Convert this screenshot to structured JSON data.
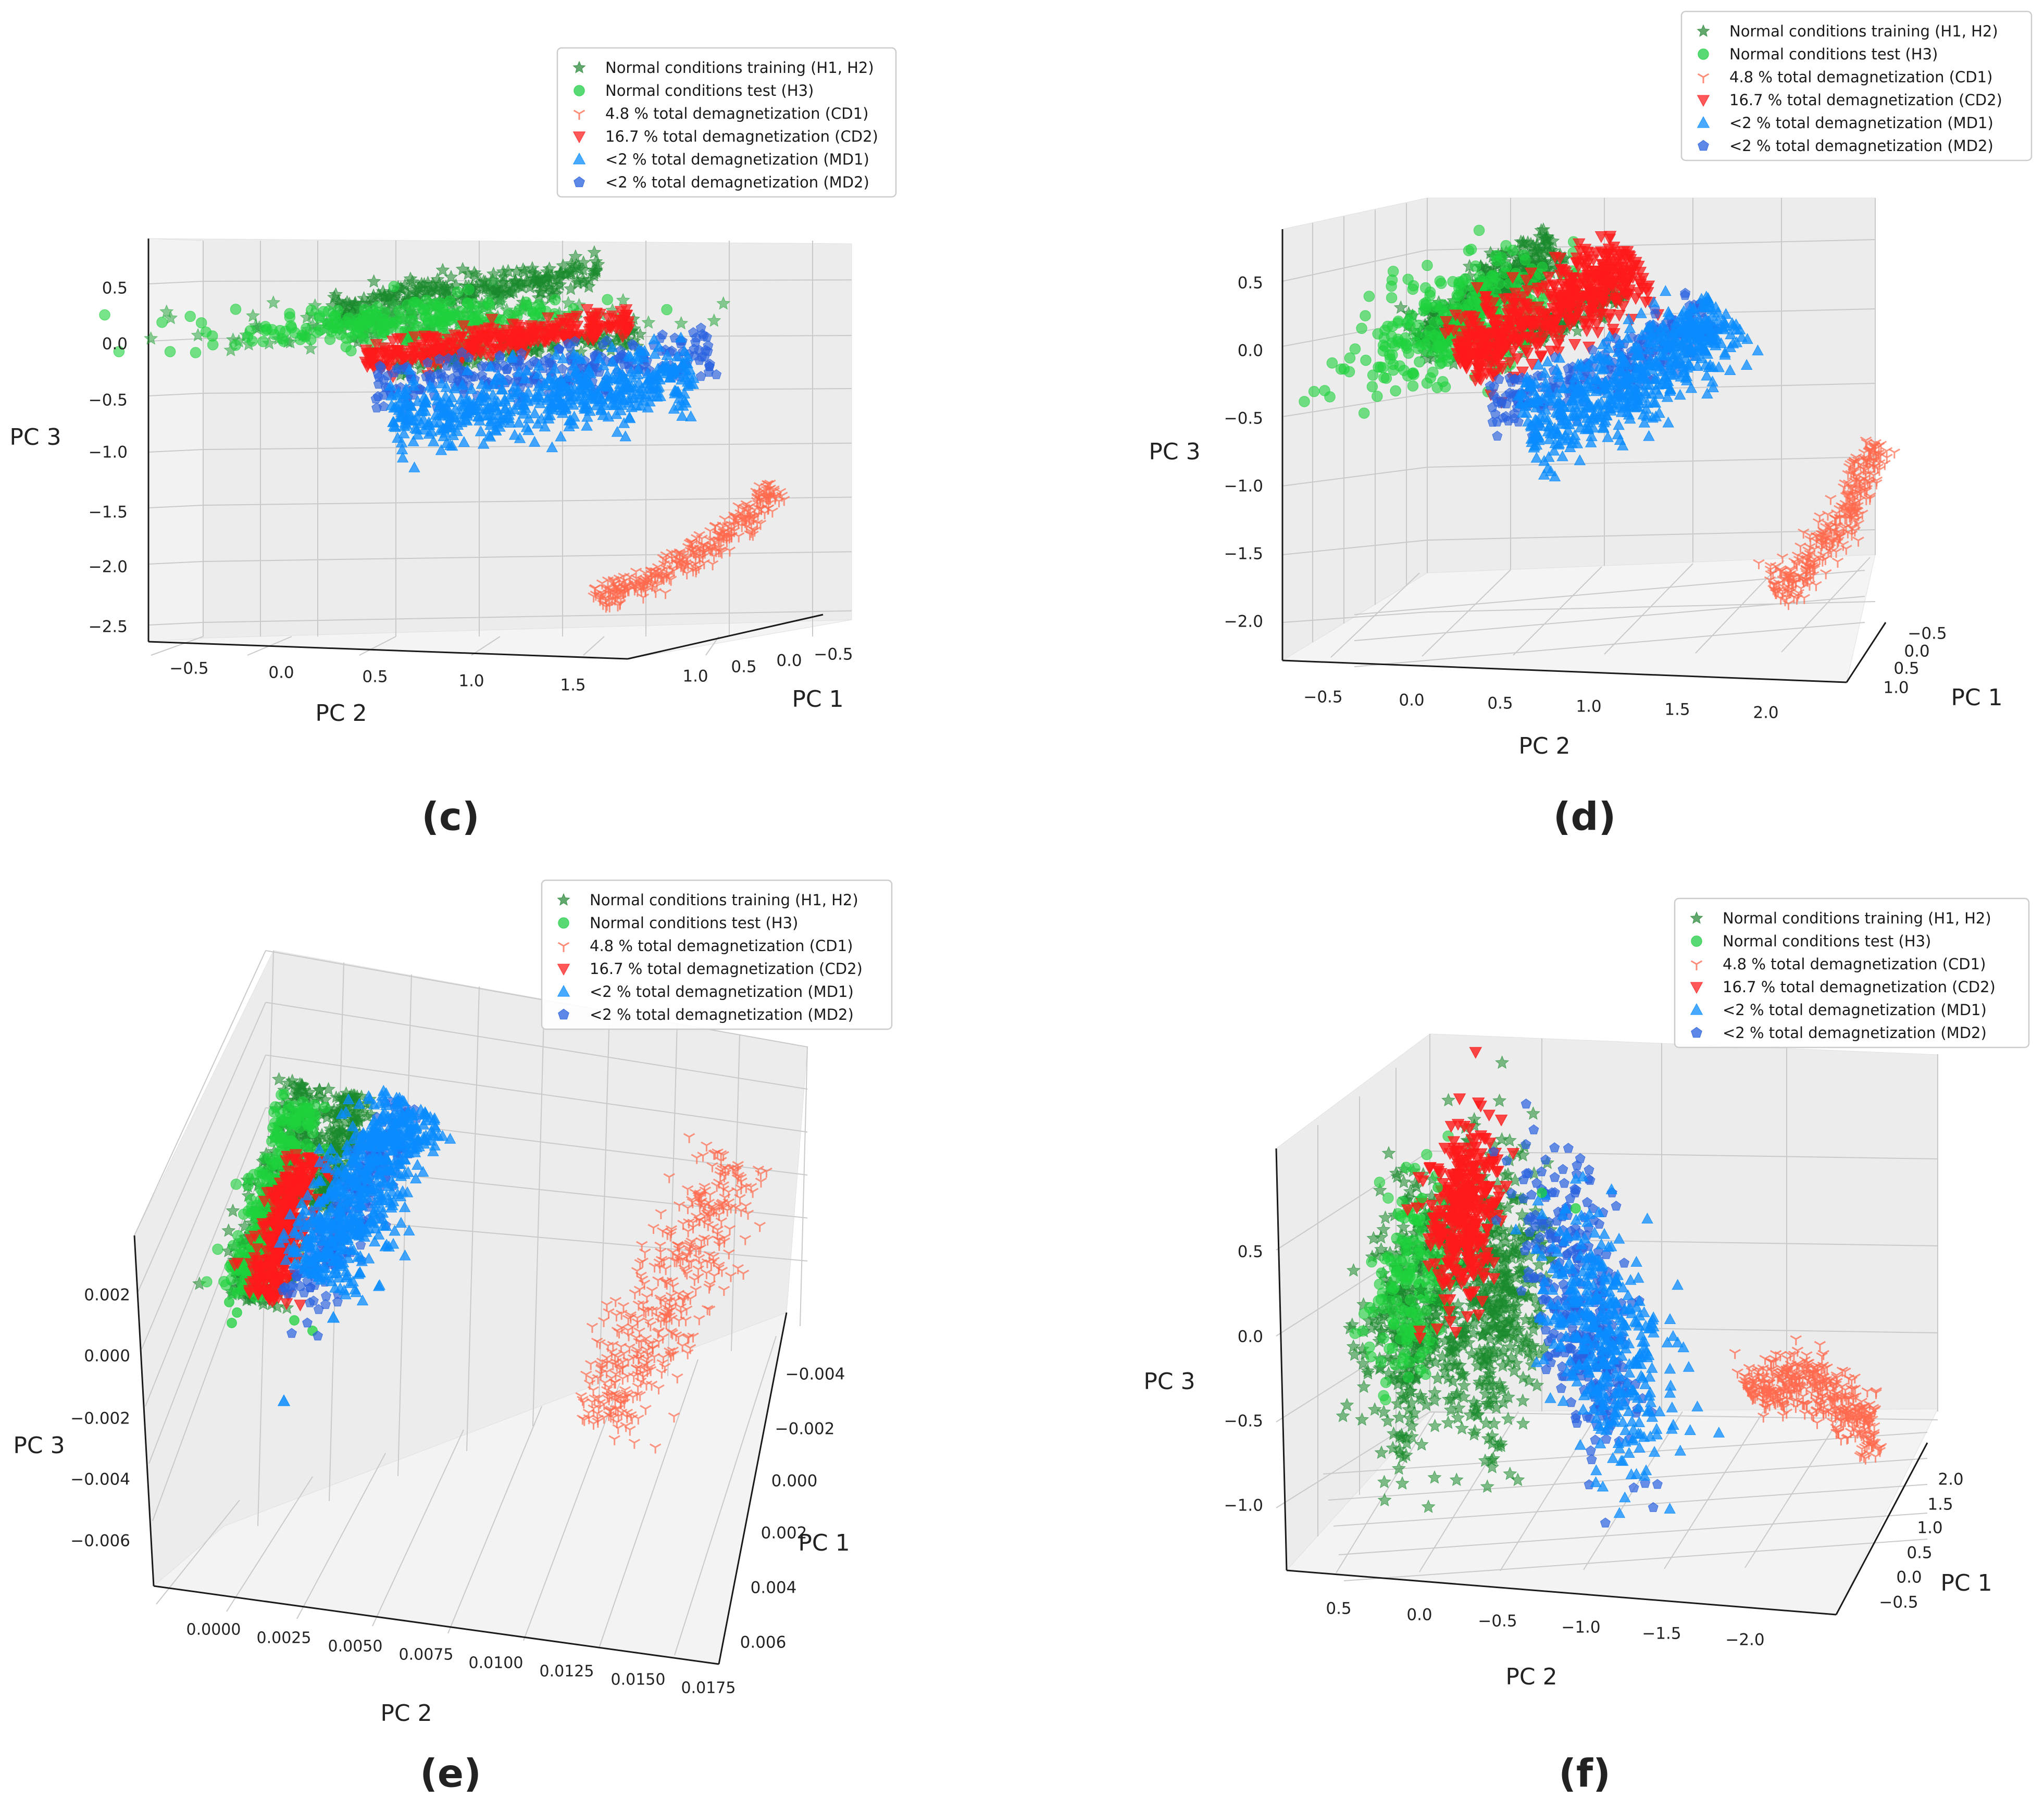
{
  "legend_entries": [
    {
      "label": "Normal conditions training (H1, H2)",
      "color": "#2e8b3d",
      "marker": "star"
    },
    {
      "label": "Normal conditions test (H3)",
      "color": "#22cc44",
      "marker": "circle"
    },
    {
      "label": "4.8 % total demagnetization (CD1)",
      "color": "#ff6347",
      "marker": "tri-down"
    },
    {
      "label": "16.7 % total demagnetization (CD2)",
      "color": "#ff2020",
      "marker": "triangle-down"
    },
    {
      "label": "<2 % total demagnetization (MD1)",
      "color": "#0a8cff",
      "marker": "triangle-up"
    },
    {
      "label": "<2 % total demagnetization (MD2)",
      "color": "#2860e0",
      "marker": "pentagon"
    }
  ],
  "chart_data": [
    {
      "type": "scatter",
      "panel": "(c)",
      "xlabel": "PC 1",
      "ylabel": "PC 2",
      "zlabel": "PC 3",
      "pc1_ticks": [
        "1.0",
        "0.5",
        "0.0",
        "−0.5"
      ],
      "pc2_ticks": [
        "−0.5",
        "0.0",
        "0.5",
        "1.0",
        "1.5"
      ],
      "pc3_ticks": [
        "0.5",
        "0.0",
        "−0.5",
        "−1.0",
        "−1.5",
        "−2.0",
        "−2.5"
      ],
      "series": [
        {
          "name": "Normal conditions training (H1, H2)",
          "pc2_range": [
            -0.3,
            1.6
          ],
          "pc3_range": [
            -0.1,
            0.6
          ]
        },
        {
          "name": "Normal conditions test (H3)",
          "pc2_range": [
            -0.3,
            1.1
          ],
          "pc3_range": [
            -0.05,
            0.4
          ]
        },
        {
          "name": "16.7 % total demagnetization (CD2)",
          "pc2_range": [
            0.0,
            1.5
          ],
          "pc3_range": [
            -0.2,
            0.1
          ]
        },
        {
          "name": "<2 % total demagnetization (MD1)",
          "pc2_range": [
            0.0,
            1.8
          ],
          "pc3_range": [
            -0.8,
            -0.3
          ]
        },
        {
          "name": "<2 % total demagnetization (MD2)",
          "pc2_range": [
            0.0,
            1.8
          ],
          "pc3_range": [
            -0.7,
            -0.3
          ]
        },
        {
          "name": "4.8 % total demagnetization (CD1)",
          "pc2_range": [
            1.0,
            1.8
          ],
          "pc3_range": [
            -2.3,
            -1.4
          ]
        }
      ]
    },
    {
      "type": "scatter",
      "panel": "(d)",
      "xlabel": "PC 1",
      "ylabel": "PC 2",
      "zlabel": "PC 3",
      "pc1_ticks": [
        "−0.5",
        "0.0",
        "0.5",
        "1.0"
      ],
      "pc2_ticks": [
        "−0.5",
        "0.0",
        "0.5",
        "1.0",
        "1.5",
        "2.0"
      ],
      "pc3_ticks": [
        "0.5",
        "0.0",
        "−0.5",
        "−1.0",
        "−1.5",
        "−2.0"
      ],
      "series": [
        {
          "name": "Normal conditions training (H1, H2)",
          "pc2_range": [
            0.0,
            1.3
          ],
          "pc3_range": [
            0.0,
            0.8
          ]
        },
        {
          "name": "Normal conditions test (H3)",
          "pc2_range": [
            0.0,
            0.9
          ],
          "pc3_range": [
            0.0,
            0.6
          ]
        },
        {
          "name": "16.7 % total demagnetization (CD2)",
          "pc2_range": [
            0.3,
            1.5
          ],
          "pc3_range": [
            -0.1,
            0.6
          ]
        },
        {
          "name": "<2 % total demagnetization (MD1)",
          "pc2_range": [
            0.8,
            2.0
          ],
          "pc3_range": [
            -0.6,
            0.3
          ]
        },
        {
          "name": "<2 % total demagnetization (MD2)",
          "pc2_range": [
            0.8,
            2.0
          ],
          "pc3_range": [
            -0.6,
            0.2
          ]
        },
        {
          "name": "4.8 % total demagnetization (CD1)",
          "pc2_range": [
            2.0,
            2.3
          ],
          "pc3_range": [
            -1.9,
            -1.0
          ]
        }
      ]
    },
    {
      "type": "scatter",
      "panel": "(e)",
      "xlabel": "PC 1",
      "ylabel": "PC 2",
      "zlabel": "PC 3",
      "pc1_ticks": [
        "−0.004",
        "−0.002",
        "0.000",
        "0.002",
        "0.004",
        "0.006"
      ],
      "pc2_ticks": [
        "0.0000",
        "0.0025",
        "0.0050",
        "0.0075",
        "0.0100",
        "0.0125",
        "0.0150",
        "0.0175"
      ],
      "pc3_ticks": [
        "0.002",
        "0.000",
        "−0.002",
        "−0.004",
        "−0.006"
      ],
      "series": [
        {
          "name": "Normal conditions training (H1, H2)",
          "pc2_range": [
            0.0,
            0.0035
          ],
          "pc3_range": [
            -0.002,
            0.004
          ]
        },
        {
          "name": "Normal conditions test (H3)",
          "pc2_range": [
            0.0,
            0.0025
          ],
          "pc3_range": [
            -0.002,
            0.004
          ]
        },
        {
          "name": "16.7 % total demagnetization (CD2)",
          "pc2_range": [
            0.0005,
            0.003
          ],
          "pc3_range": [
            -0.002,
            0.003
          ]
        },
        {
          "name": "<2 % total demagnetization (MD1)",
          "pc2_range": [
            0.0025,
            0.006
          ],
          "pc3_range": [
            -0.002,
            0.004
          ]
        },
        {
          "name": "<2 % total demagnetization (MD2)",
          "pc2_range": [
            0.0025,
            0.006
          ],
          "pc3_range": [
            -0.002,
            0.004
          ]
        },
        {
          "name": "4.8 % total demagnetization (CD1)",
          "pc2_range": [
            0.014,
            0.0175
          ],
          "pc3_range": [
            -0.003,
            0.002
          ]
        }
      ]
    },
    {
      "type": "scatter",
      "panel": "(f)",
      "xlabel": "PC 1",
      "ylabel": "PC 2",
      "zlabel": "PC 3",
      "pc1_ticks": [
        "2.0",
        "1.5",
        "1.0",
        "0.5",
        "0.0",
        "−0.5"
      ],
      "pc2_ticks": [
        "0.5",
        "0.0",
        "−0.5",
        "−1.0",
        "−1.5",
        "−2.0"
      ],
      "pc3_ticks": [
        "0.5",
        "0.0",
        "−0.5",
        "−1.0"
      ],
      "series": [
        {
          "name": "Normal conditions training (H1, H2)",
          "pc2_range": [
            0.6,
            -0.4
          ],
          "pc3_range": [
            -0.5,
            0.6
          ]
        },
        {
          "name": "Normal conditions test (H3)",
          "pc2_range": [
            0.6,
            0.1
          ],
          "pc3_range": [
            -0.4,
            0.6
          ]
        },
        {
          "name": "16.7 % total demagnetization (CD2)",
          "pc2_range": [
            0.2,
            -0.1
          ],
          "pc3_range": [
            0.2,
            0.8
          ]
        },
        {
          "name": "<2 % total demagnetization (MD1)",
          "pc2_range": [
            -0.8,
            -1.4
          ],
          "pc3_range": [
            -0.6,
            0.4
          ]
        },
        {
          "name": "<2 % total demagnetization (MD2)",
          "pc2_range": [
            -0.7,
            -1.3
          ],
          "pc3_range": [
            -0.5,
            0.6
          ]
        },
        {
          "name": "4.8 % total demagnetization (CD1)",
          "pc2_range": [
            -2.0,
            -2.5
          ],
          "pc3_range": [
            -0.9,
            -0.3
          ]
        }
      ]
    }
  ]
}
